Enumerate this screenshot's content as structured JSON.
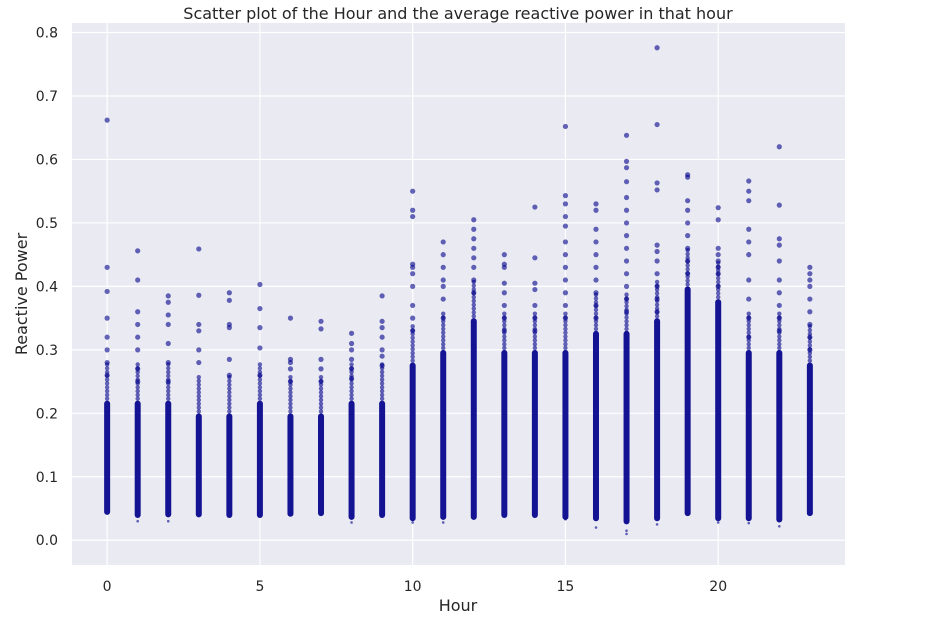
{
  "chart_data": {
    "type": "scatter",
    "title": "Scatter plot of the Hour and the average reactive power in that hour",
    "xlabel": "Hour",
    "ylabel": "Reactive Power",
    "xlim": [
      -1.15,
      24.15
    ],
    "ylim": [
      -0.039,
      0.815
    ],
    "x_ticks": [
      0,
      5,
      10,
      15,
      20
    ],
    "y_ticks": [
      0.0,
      0.1,
      0.2,
      0.3,
      0.4,
      0.5,
      0.6,
      0.7,
      0.8
    ],
    "y_tick_labels": [
      "0.0",
      "0.1",
      "0.2",
      "0.3",
      "0.4",
      "0.5",
      "0.6",
      "0.7",
      "0.8"
    ],
    "grid": true,
    "background_color": "#eaeaf2",
    "marker_color": "#00008b",
    "series": [
      {
        "x": [
          0,
          1,
          2,
          3,
          4,
          5,
          6,
          7,
          8,
          9,
          10,
          11,
          12,
          13,
          14,
          15,
          16,
          17,
          18,
          19,
          20,
          21,
          22,
          23
        ],
        "dense_min": [
          0.04,
          0.035,
          0.036,
          0.036,
          0.035,
          0.035,
          0.037,
          0.038,
          0.032,
          0.035,
          0.03,
          0.032,
          0.032,
          0.035,
          0.035,
          0.032,
          0.03,
          0.025,
          0.03,
          0.038,
          0.03,
          0.03,
          0.028,
          0.038
        ],
        "dense_max": [
          0.22,
          0.22,
          0.22,
          0.2,
          0.2,
          0.22,
          0.2,
          0.2,
          0.22,
          0.22,
          0.28,
          0.3,
          0.35,
          0.3,
          0.3,
          0.3,
          0.33,
          0.33,
          0.35,
          0.4,
          0.38,
          0.3,
          0.3,
          0.28
        ],
        "outliers": [
          [
            0.662,
            0.43,
            0.392,
            0.35,
            0.32,
            0.3,
            0.28,
            0.26
          ],
          [
            0.456,
            0.41,
            0.36,
            0.34,
            0.32,
            0.3,
            0.27,
            0.25
          ],
          [
            0.385,
            0.375,
            0.355,
            0.34,
            0.31,
            0.28,
            0.25
          ],
          [
            0.459,
            0.386,
            0.34,
            0.33,
            0.3,
            0.28
          ],
          [
            0.39,
            0.378,
            0.34,
            0.335,
            0.285,
            0.26
          ],
          [
            0.403,
            0.365,
            0.335,
            0.303,
            0.26
          ],
          [
            0.35,
            0.285,
            0.28,
            0.27,
            0.25
          ],
          [
            0.345,
            0.333,
            0.285,
            0.27,
            0.25
          ],
          [
            0.326,
            0.31,
            0.3,
            0.285,
            0.27,
            0.255
          ],
          [
            0.385,
            0.345,
            0.335,
            0.32,
            0.3,
            0.29,
            0.275
          ],
          [
            0.55,
            0.52,
            0.51,
            0.435,
            0.43,
            0.42,
            0.4,
            0.37,
            0.35,
            0.33
          ],
          [
            0.47,
            0.45,
            0.43,
            0.41,
            0.4,
            0.38,
            0.35
          ],
          [
            0.505,
            0.49,
            0.475,
            0.46,
            0.445,
            0.43,
            0.41,
            0.39
          ],
          [
            0.45,
            0.435,
            0.43,
            0.405,
            0.39,
            0.37,
            0.35,
            0.33
          ],
          [
            0.525,
            0.445,
            0.405,
            0.395,
            0.37,
            0.35,
            0.33
          ],
          [
            0.652,
            0.543,
            0.53,
            0.51,
            0.495,
            0.47,
            0.45,
            0.43,
            0.41,
            0.39,
            0.37,
            0.35
          ],
          [
            0.53,
            0.52,
            0.49,
            0.47,
            0.45,
            0.43,
            0.41,
            0.39,
            0.37,
            0.35
          ],
          [
            0.638,
            0.597,
            0.587,
            0.565,
            0.54,
            0.52,
            0.5,
            0.48,
            0.46,
            0.44,
            0.42,
            0.4,
            0.38,
            0.36
          ],
          [
            0.776,
            0.655,
            0.563,
            0.552,
            0.465,
            0.455,
            0.44,
            0.42,
            0.4,
            0.38,
            0.36
          ],
          [
            0.576,
            0.572,
            0.535,
            0.52,
            0.5,
            0.48,
            0.46,
            0.44,
            0.42
          ],
          [
            0.524,
            0.505,
            0.46,
            0.45,
            0.44,
            0.43,
            0.42,
            0.4
          ],
          [
            0.566,
            0.55,
            0.535,
            0.49,
            0.47,
            0.45,
            0.41,
            0.38,
            0.35,
            0.32
          ],
          [
            0.62,
            0.528,
            0.475,
            0.465,
            0.44,
            0.41,
            0.39,
            0.37,
            0.35,
            0.33
          ],
          [
            0.43,
            0.42,
            0.41,
            0.4,
            0.38,
            0.36,
            0.34,
            0.32,
            0.3
          ]
        ],
        "low_outliers": [
          [],
          [
            0.03
          ],
          [
            0.03
          ],
          [],
          [],
          [],
          [],
          [],
          [
            0.028
          ],
          [],
          [
            0.028
          ],
          [
            0.028
          ],
          [],
          [],
          [],
          [
            0.033
          ],
          [
            0.02
          ],
          [
            0.015,
            0.01
          ],
          [
            0.025
          ],
          [],
          [
            0.028
          ],
          [
            0.027
          ],
          [
            0.022
          ],
          []
        ]
      }
    ]
  }
}
